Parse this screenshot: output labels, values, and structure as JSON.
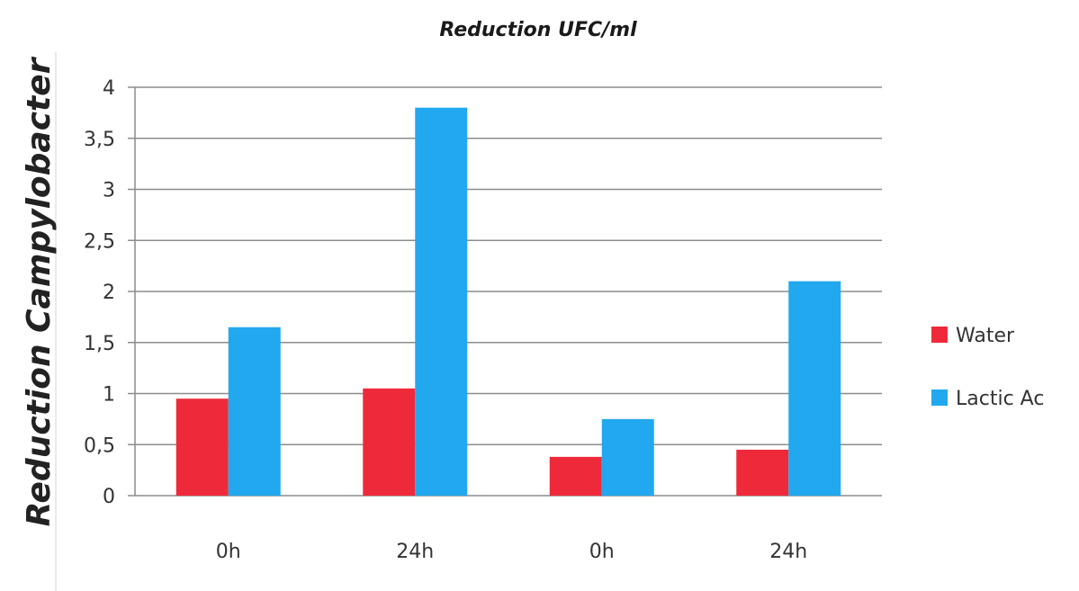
{
  "chart_data": {
    "type": "bar",
    "title": "Reduction UFC/ml",
    "ylabel": "Reduction Campylobacter",
    "xlabel": "",
    "categories": [
      "0h",
      "24h",
      "0h",
      "24h"
    ],
    "series": [
      {
        "name": "Water",
        "color": "#ee2a3a",
        "values": [
          0.95,
          1.05,
          0.38,
          0.45
        ]
      },
      {
        "name": "Lactic Ac",
        "color": "#21a8ee",
        "values": [
          1.65,
          3.8,
          0.75,
          2.1
        ]
      }
    ],
    "ylim": [
      0,
      4
    ],
    "yticks": [
      {
        "value": 0,
        "label": "0"
      },
      {
        "value": 0.5,
        "label": "0,5"
      },
      {
        "value": 1,
        "label": "1"
      },
      {
        "value": 1.5,
        "label": "1,5"
      },
      {
        "value": 2,
        "label": "2"
      },
      {
        "value": 2.5,
        "label": "2,5"
      },
      {
        "value": 3,
        "label": "3"
      },
      {
        "value": 3.5,
        "label": "3,5"
      },
      {
        "value": 4,
        "label": "4"
      }
    ],
    "grid": true,
    "legend_position": "right"
  }
}
